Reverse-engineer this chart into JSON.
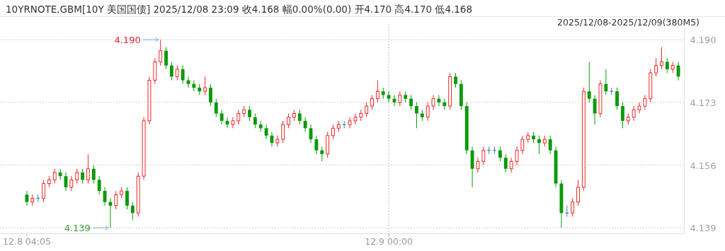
{
  "chart_data": {
    "type": "candlestick",
    "title": "10YRNOTE.GBM[10Y 美国国债]   2025/12/08 23:09   收4.168   幅0.00%(0.00)   开4.170   高4.170   低4.168",
    "subtitle": "2025/12/08-2025/12/09(380M5)",
    "categories": [
      "12.8 04:05",
      null,
      null,
      null,
      null,
      null,
      null,
      null,
      null,
      null,
      null,
      null,
      null,
      null,
      null,
      null,
      null,
      null,
      null,
      null,
      null,
      null,
      null,
      null,
      null,
      null,
      null,
      null,
      null,
      null,
      null,
      null,
      null,
      null,
      null,
      null,
      null,
      null,
      null,
      null,
      null,
      null,
      null,
      null,
      null,
      null,
      null,
      null,
      null,
      null,
      null,
      null,
      null,
      null,
      null,
      null,
      null,
      null,
      null,
      null,
      null,
      null,
      null,
      null,
      null,
      "12.9 00:00",
      null,
      null,
      null,
      null,
      null,
      null,
      null,
      null,
      null,
      null,
      null,
      null,
      null,
      null,
      null,
      null,
      null,
      null,
      null,
      null,
      null,
      null,
      null,
      null,
      null,
      null,
      null,
      null,
      null,
      null,
      null,
      null,
      null,
      null,
      null,
      null,
      null,
      null,
      null,
      null,
      null,
      null,
      null,
      null,
      null,
      null,
      null,
      null,
      null,
      null,
      null,
      null
    ],
    "ohlc": [
      [
        4.148,
        4.149,
        4.145,
        4.146
      ],
      [
        4.146,
        4.148,
        4.145,
        4.147
      ],
      [
        4.147,
        4.148,
        4.146,
        4.147
      ],
      [
        4.147,
        4.152,
        4.146,
        4.151
      ],
      [
        4.151,
        4.153,
        4.15,
        4.152
      ],
      [
        4.152,
        4.155,
        4.151,
        4.154
      ],
      [
        4.154,
        4.155,
        4.152,
        4.153
      ],
      [
        4.153,
        4.154,
        4.149,
        4.15
      ],
      [
        4.15,
        4.153,
        4.149,
        4.152
      ],
      [
        4.152,
        4.155,
        4.151,
        4.154
      ],
      [
        4.154,
        4.155,
        4.151,
        4.152
      ],
      [
        4.152,
        4.159,
        4.151,
        4.155
      ],
      [
        4.155,
        4.156,
        4.151,
        4.152
      ],
      [
        4.152,
        4.153,
        4.148,
        4.149
      ],
      [
        4.149,
        4.15,
        4.145,
        4.146
      ],
      [
        4.146,
        4.147,
        4.139,
        4.145
      ],
      [
        4.145,
        4.149,
        4.144,
        4.148
      ],
      [
        4.148,
        4.15,
        4.147,
        4.149
      ],
      [
        4.149,
        4.15,
        4.144,
        4.145
      ],
      [
        4.145,
        4.146,
        4.141,
        4.143
      ],
      [
        4.143,
        4.154,
        4.142,
        4.153
      ],
      [
        4.153,
        4.169,
        4.152,
        4.168
      ],
      [
        4.168,
        4.18,
        4.167,
        4.179
      ],
      [
        4.179,
        4.185,
        4.178,
        4.184
      ],
      [
        4.184,
        4.19,
        4.183,
        4.187
      ],
      [
        4.187,
        4.188,
        4.182,
        4.183
      ],
      [
        4.183,
        4.184,
        4.179,
        4.18
      ],
      [
        4.18,
        4.183,
        4.179,
        4.182
      ],
      [
        4.182,
        4.183,
        4.178,
        4.179
      ],
      [
        4.179,
        4.18,
        4.177,
        4.178
      ],
      [
        4.178,
        4.179,
        4.176,
        4.177
      ],
      [
        4.177,
        4.178,
        4.175,
        4.176
      ],
      [
        4.176,
        4.18,
        4.175,
        4.177
      ],
      [
        4.177,
        4.178,
        4.172,
        4.173
      ],
      [
        4.173,
        4.174,
        4.169,
        4.17
      ],
      [
        4.17,
        4.171,
        4.167,
        4.168
      ],
      [
        4.168,
        4.169,
        4.166,
        4.167
      ],
      [
        4.167,
        4.169,
        4.166,
        4.168
      ],
      [
        4.168,
        4.171,
        4.167,
        4.17
      ],
      [
        4.17,
        4.172,
        4.169,
        4.171
      ],
      [
        4.171,
        4.172,
        4.168,
        4.169
      ],
      [
        4.169,
        4.17,
        4.166,
        4.167
      ],
      [
        4.167,
        4.168,
        4.165,
        4.166
      ],
      [
        4.166,
        4.167,
        4.163,
        4.164
      ],
      [
        4.164,
        4.165,
        4.161,
        4.162
      ],
      [
        4.162,
        4.164,
        4.161,
        4.163
      ],
      [
        4.163,
        4.168,
        4.162,
        4.167
      ],
      [
        4.167,
        4.17,
        4.166,
        4.169
      ],
      [
        4.169,
        4.171,
        4.168,
        4.17
      ],
      [
        4.17,
        4.171,
        4.167,
        4.168
      ],
      [
        4.168,
        4.169,
        4.165,
        4.166
      ],
      [
        4.166,
        4.167,
        4.162,
        4.163
      ],
      [
        4.163,
        4.164,
        4.159,
        4.16
      ],
      [
        4.16,
        4.161,
        4.157,
        4.159
      ],
      [
        4.159,
        4.165,
        4.158,
        4.164
      ],
      [
        4.164,
        4.167,
        4.163,
        4.166
      ],
      [
        4.166,
        4.168,
        4.165,
        4.167
      ],
      [
        4.167,
        4.168,
        4.166,
        4.167
      ],
      [
        4.167,
        4.169,
        4.166,
        4.168
      ],
      [
        4.168,
        4.17,
        4.167,
        4.169
      ],
      [
        4.169,
        4.171,
        4.168,
        4.17
      ],
      [
        4.17,
        4.173,
        4.169,
        4.172
      ],
      [
        4.172,
        4.175,
        4.171,
        4.174
      ],
      [
        4.174,
        4.179,
        4.173,
        4.176
      ],
      [
        4.176,
        4.177,
        4.174,
        4.175
      ],
      [
        4.175,
        4.176,
        4.173,
        4.174
      ],
      [
        4.174,
        4.175,
        4.172,
        4.173
      ],
      [
        4.173,
        4.176,
        4.172,
        4.175
      ],
      [
        4.175,
        4.176,
        4.173,
        4.174
      ],
      [
        4.174,
        4.175,
        4.171,
        4.172
      ],
      [
        4.172,
        4.173,
        4.166,
        4.17
      ],
      [
        4.17,
        4.171,
        4.168,
        4.169
      ],
      [
        4.169,
        4.173,
        4.168,
        4.172
      ],
      [
        4.172,
        4.175,
        4.171,
        4.174
      ],
      [
        4.174,
        4.175,
        4.172,
        4.173
      ],
      [
        4.173,
        4.174,
        4.171,
        4.172
      ],
      [
        4.172,
        4.181,
        4.171,
        4.18
      ],
      [
        4.18,
        4.181,
        4.177,
        4.178
      ],
      [
        4.178,
        4.179,
        4.171,
        4.172
      ],
      [
        4.172,
        4.173,
        4.159,
        4.16
      ],
      [
        4.16,
        4.161,
        4.15,
        4.155
      ],
      [
        4.155,
        4.158,
        4.154,
        4.157
      ],
      [
        4.157,
        4.161,
        4.156,
        4.16
      ],
      [
        4.16,
        4.161,
        4.159,
        4.16
      ],
      [
        4.16,
        4.161,
        4.159,
        4.16
      ],
      [
        4.16,
        4.161,
        4.157,
        4.158
      ],
      [
        4.158,
        4.159,
        4.154,
        4.155
      ],
      [
        4.155,
        4.158,
        4.154,
        4.157
      ],
      [
        4.157,
        4.161,
        4.156,
        4.16
      ],
      [
        4.16,
        4.164,
        4.159,
        4.163
      ],
      [
        4.163,
        4.165,
        4.162,
        4.164
      ],
      [
        4.164,
        4.165,
        4.162,
        4.163
      ],
      [
        4.163,
        4.164,
        4.159,
        4.162
      ],
      [
        4.162,
        4.164,
        4.161,
        4.163
      ],
      [
        4.163,
        4.164,
        4.159,
        4.16
      ],
      [
        4.16,
        4.161,
        4.15,
        4.151
      ],
      [
        4.151,
        4.152,
        4.139,
        4.143
      ],
      [
        4.143,
        4.145,
        4.142,
        4.143
      ],
      [
        4.143,
        4.147,
        4.142,
        4.146
      ],
      [
        4.146,
        4.152,
        4.145,
        4.15
      ],
      [
        4.15,
        4.177,
        4.149,
        4.176
      ],
      [
        4.176,
        4.184,
        4.173,
        4.174
      ],
      [
        4.174,
        4.175,
        4.167,
        4.17
      ],
      [
        4.17,
        4.179,
        4.169,
        4.178
      ],
      [
        4.178,
        4.182,
        4.175,
        4.176
      ],
      [
        4.176,
        4.177,
        4.175,
        4.176
      ],
      [
        4.176,
        4.177,
        4.171,
        4.172
      ],
      [
        4.172,
        4.173,
        4.166,
        4.168
      ],
      [
        4.168,
        4.17,
        4.167,
        4.169
      ],
      [
        4.169,
        4.172,
        4.168,
        4.171
      ],
      [
        4.171,
        4.173,
        4.17,
        4.172
      ],
      [
        4.172,
        4.175,
        4.171,
        4.174
      ],
      [
        4.174,
        4.182,
        4.173,
        4.181
      ],
      [
        4.181,
        4.185,
        4.18,
        4.183
      ],
      [
        4.183,
        4.188,
        4.182,
        4.184
      ],
      [
        4.184,
        4.185,
        4.181,
        4.182
      ],
      [
        4.182,
        4.184,
        4.181,
        4.183
      ],
      [
        4.183,
        4.184,
        4.179,
        4.18
      ]
    ],
    "ylim": [
      4.1375,
      4.1931
    ],
    "yticks": [
      4.139,
      4.156,
      4.173,
      {
        "value": 4.19,
        "label": "4.190"
      }
    ],
    "grid": true,
    "annotations": [
      "4.190",
      "4.139"
    ]
  }
}
